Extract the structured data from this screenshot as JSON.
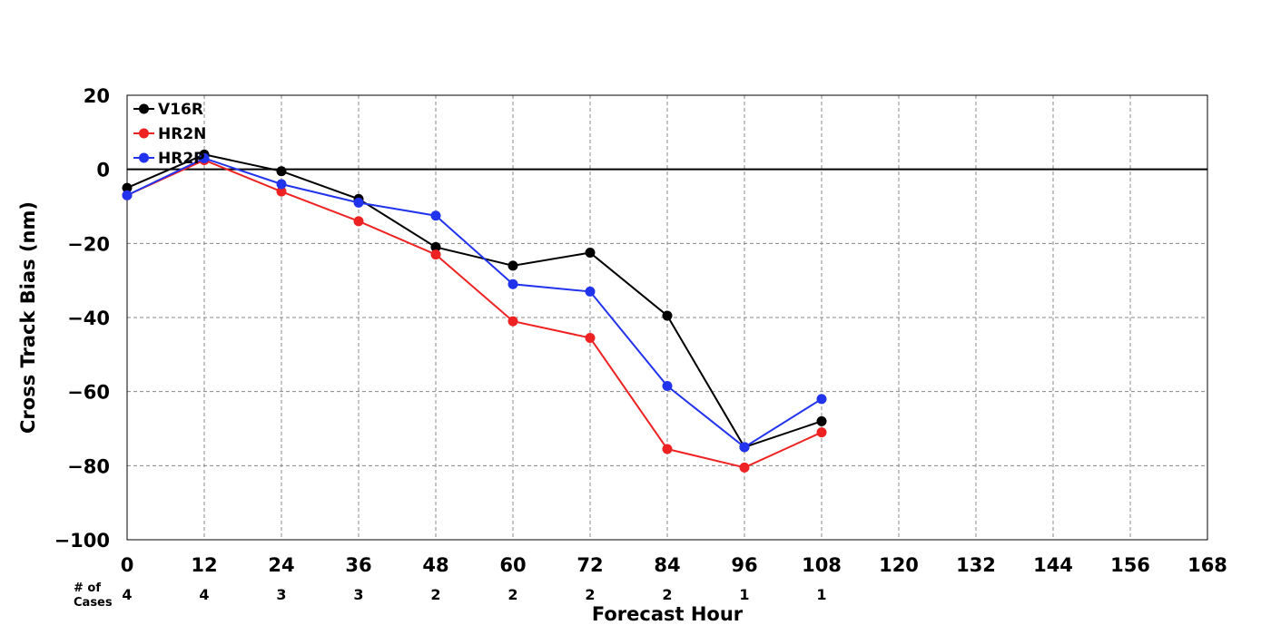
{
  "chart_data": {
    "type": "line",
    "xlabel": "Forecast Hour",
    "ylabel": "Cross Track Bias (nm)",
    "xlim": [
      0,
      168
    ],
    "ylim": [
      -100,
      20
    ],
    "xticks": [
      0,
      12,
      24,
      36,
      48,
      60,
      72,
      84,
      96,
      108,
      120,
      132,
      144,
      156,
      168
    ],
    "yticks": [
      20,
      0,
      -20,
      -40,
      -60,
      -80,
      -100
    ],
    "ytick_labels": [
      "20",
      "0",
      "−20",
      "−40",
      "−60",
      "−80",
      "−100"
    ],
    "grid": true,
    "zero_line": true,
    "legend_position": "top-left",
    "x": [
      0,
      12,
      24,
      36,
      48,
      60,
      72,
      84,
      96,
      108
    ],
    "series": [
      {
        "name": "V16R",
        "color": "#000000",
        "values": [
          -5,
          4,
          -0.5,
          -8,
          -21,
          -26,
          -22.5,
          -39.5,
          -75,
          -68
        ]
      },
      {
        "name": "HR2N",
        "color": "#ee2222",
        "values": [
          -7,
          2.5,
          -6,
          -14,
          -23,
          -41,
          -45.5,
          -75.5,
          -80.5,
          -71
        ]
      },
      {
        "name": "HR2P",
        "color": "#2233ee",
        "values": [
          -7,
          3,
          -4,
          -9,
          -12.5,
          -31,
          -33,
          -58.5,
          -75,
          -62
        ]
      }
    ],
    "cases": {
      "title_line1": "# of",
      "title_line2": "Cases",
      "values": [
        "4",
        "4",
        "3",
        "3",
        "2",
        "2",
        "2",
        "2",
        "1",
        "1"
      ]
    }
  }
}
